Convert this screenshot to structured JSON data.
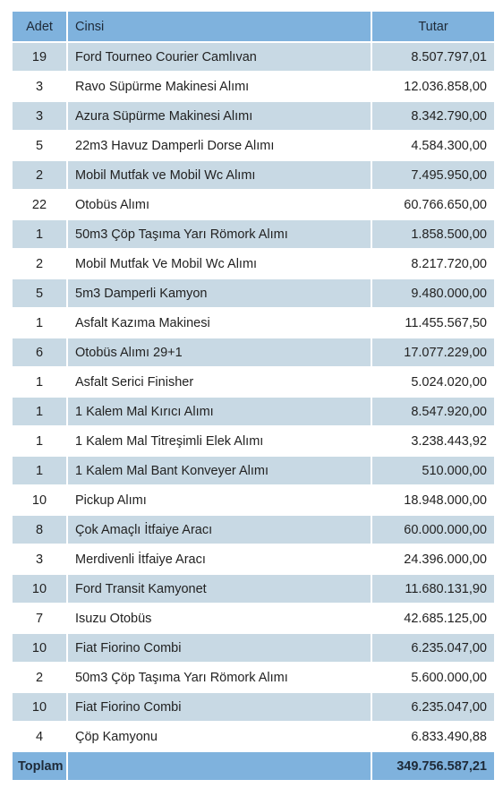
{
  "header": {
    "adet": "Adet",
    "cinsi": "Cinsi",
    "tutar": "Tutar"
  },
  "rows": [
    {
      "adet": "19",
      "cinsi": "Ford Tourneo Courier Camlıvan",
      "tutar": "8.507.797,01"
    },
    {
      "adet": "3",
      "cinsi": "Ravo Süpürme Makinesi Alımı",
      "tutar": "12.036.858,00"
    },
    {
      "adet": "3",
      "cinsi": "Azura Süpürme Makinesi Alımı",
      "tutar": "8.342.790,00"
    },
    {
      "adet": "5",
      "cinsi": "22m3 Havuz Damperli Dorse Alımı",
      "tutar": "4.584.300,00"
    },
    {
      "adet": "2",
      "cinsi": "Mobil Mutfak ve Mobil Wc Alımı",
      "tutar": "7.495.950,00"
    },
    {
      "adet": "22",
      "cinsi": "Otobüs Alımı",
      "tutar": "60.766.650,00"
    },
    {
      "adet": "1",
      "cinsi": "50m3 Çöp Taşıma Yarı Römork Alımı",
      "tutar": "1.858.500,00"
    },
    {
      "adet": "2",
      "cinsi": "Mobil Mutfak Ve Mobil Wc Alımı",
      "tutar": "8.217.720,00"
    },
    {
      "adet": "5",
      "cinsi": "5m3 Damperli Kamyon",
      "tutar": "9.480.000,00"
    },
    {
      "adet": "1",
      "cinsi": "Asfalt Kazıma Makinesi",
      "tutar": "11.455.567,50"
    },
    {
      "adet": "6",
      "cinsi": "Otobüs Alımı 29+1",
      "tutar": "17.077.229,00"
    },
    {
      "adet": "1",
      "cinsi": "Asfalt Serici Finisher",
      "tutar": "5.024.020,00"
    },
    {
      "adet": "1",
      "cinsi": "1 Kalem Mal Kırıcı Alımı",
      "tutar": "8.547.920,00"
    },
    {
      "adet": "1",
      "cinsi": "1 Kalem Mal Titreşimli Elek Alımı",
      "tutar": "3.238.443,92"
    },
    {
      "adet": "1",
      "cinsi": "1 Kalem Mal Bant Konveyer Alımı",
      "tutar": "510.000,00"
    },
    {
      "adet": "10",
      "cinsi": "Pickup Alımı",
      "tutar": "18.948.000,00"
    },
    {
      "adet": "8",
      "cinsi": "Çok Amaçlı İtfaiye Aracı",
      "tutar": "60.000.000,00"
    },
    {
      "adet": "3",
      "cinsi": "Merdivenli İtfaiye Aracı",
      "tutar": "24.396.000,00"
    },
    {
      "adet": "10",
      "cinsi": "Ford Transit Kamyonet",
      "tutar": "11.680.131,90"
    },
    {
      "adet": "7",
      "cinsi": "Isuzu Otobüs",
      "tutar": "42.685.125,00"
    },
    {
      "adet": "10",
      "cinsi": "Fiat Fiorino Combi",
      "tutar": "6.235.047,00"
    },
    {
      "adet": "2",
      "cinsi": "50m3 Çöp Taşıma Yarı Römork Alımı",
      "tutar": "5.600.000,00"
    },
    {
      "adet": "10",
      "cinsi": "Fiat Fiorino Combi",
      "tutar": "6.235.047,00"
    },
    {
      "adet": "4",
      "cinsi": "Çöp Kamyonu",
      "tutar": "6.833.490,88"
    }
  ],
  "footer": {
    "label": "Toplam",
    "cinsi": "",
    "tutar": "349.756.587,21"
  }
}
